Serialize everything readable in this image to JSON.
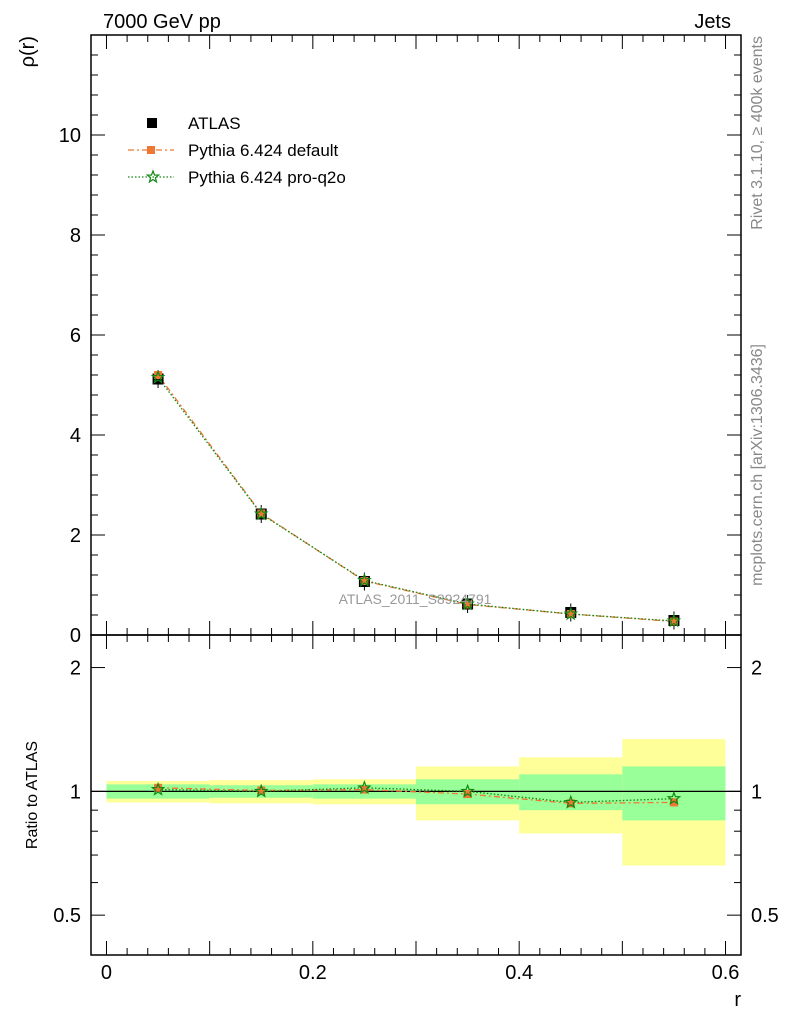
{
  "header": {
    "left": "7000 GeV pp",
    "right": "Jets"
  },
  "side": {
    "rivet": "Rivet 3.1.10, ≥ 400k events",
    "mcplots": "mcplots.cern.ch [arXiv:1306.3436]"
  },
  "watermark": "ATLAS_2011_S8924791",
  "colors": {
    "data": "#000000",
    "default": "#ee7733",
    "proq2o": "#118811",
    "band_inner": "#99ff99",
    "band_outer": "#ffff99"
  },
  "chart_data": [
    {
      "type": "line",
      "title": "7000 GeV pp Jets",
      "xlabel": "r",
      "ylabel": "ρ(r)",
      "xlim": [
        -0.015,
        0.615
      ],
      "ylim": [
        0,
        12
      ],
      "yticks": [
        0,
        2,
        4,
        6,
        8,
        10
      ],
      "ytick_labels": [
        "0",
        "2",
        "4",
        "6",
        "8",
        "10"
      ],
      "legend_position": "top-left",
      "x": [
        0.05,
        0.15,
        0.25,
        0.35,
        0.45,
        0.55
      ],
      "series": [
        {
          "name": "ATLAS",
          "marker": "square",
          "values": [
            5.12,
            2.42,
            1.07,
            0.62,
            0.45,
            0.29
          ]
        },
        {
          "name": "Pythia 6.424 default",
          "marker": "square-dashed",
          "values": [
            5.2,
            2.43,
            1.08,
            0.61,
            0.42,
            0.27
          ]
        },
        {
          "name": "Pythia 6.424 pro-q2o",
          "marker": "star-dotted",
          "values": [
            5.15,
            2.42,
            1.09,
            0.62,
            0.42,
            0.28
          ]
        }
      ]
    },
    {
      "type": "line",
      "ylabel": "Ratio to ATLAS",
      "xlabel": "r",
      "xlim": [
        -0.015,
        0.615
      ],
      "ylim": [
        0.4,
        2.4
      ],
      "yscale": "log",
      "yticks": [
        0.5,
        1,
        2
      ],
      "ytick_labels": [
        "0.5",
        "1",
        "2"
      ],
      "xticks": [
        0,
        0.2,
        0.4,
        0.6
      ],
      "xtick_labels": [
        "0",
        "0.2",
        "0.4",
        "0.6"
      ],
      "bins": [
        [
          0,
          0.1
        ],
        [
          0.1,
          0.2
        ],
        [
          0.2,
          0.3
        ],
        [
          0.3,
          0.4
        ],
        [
          0.4,
          0.5
        ],
        [
          0.5,
          0.6
        ]
      ],
      "band_inner": [
        [
          0.96,
          1.04
        ],
        [
          0.965,
          1.035
        ],
        [
          0.96,
          1.04
        ],
        [
          0.93,
          1.07
        ],
        [
          0.9,
          1.1
        ],
        [
          0.85,
          1.15
        ]
      ],
      "band_outer": [
        [
          0.94,
          1.06
        ],
        [
          0.935,
          1.065
        ],
        [
          0.93,
          1.07
        ],
        [
          0.85,
          1.15
        ],
        [
          0.79,
          1.21
        ],
        [
          0.66,
          1.34
        ]
      ],
      "x": [
        0.05,
        0.15,
        0.25,
        0.35,
        0.45,
        0.55
      ],
      "series": [
        {
          "name": "Pythia 6.424 default",
          "values": [
            1.02,
            1.005,
            1.01,
            0.985,
            0.935,
            0.94
          ]
        },
        {
          "name": "Pythia 6.424 pro-q2o",
          "values": [
            1.01,
            1.0,
            1.02,
            1.0,
            0.94,
            0.96
          ]
        }
      ]
    }
  ]
}
